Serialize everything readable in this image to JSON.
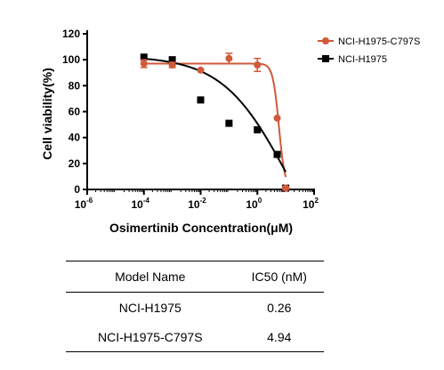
{
  "chart_data": {
    "type": "scatter",
    "xlabel": "Osimertinib Concentration(μM)",
    "ylabel": "Cell viability(%)",
    "xscale": "log",
    "xlim": [
      -6,
      2
    ],
    "ylim": [
      0,
      120
    ],
    "x_ticks": [
      {
        "base": "10",
        "exp": "-6",
        "value": -6
      },
      {
        "base": "10",
        "exp": "-4",
        "value": -4
      },
      {
        "base": "10",
        "exp": "-2",
        "value": -2
      },
      {
        "base": "10",
        "exp": "0",
        "value": 0
      },
      {
        "base": "10",
        "exp": "2",
        "value": 2
      }
    ],
    "y_ticks": [
      "0",
      "20",
      "40",
      "60",
      "80",
      "100",
      "120"
    ],
    "legend_position": "top-right",
    "series": [
      {
        "name": "NCI-H1975-C797S",
        "color": "#d05a3a",
        "marker": "circle",
        "x": [
          0.0001,
          0.001,
          0.01,
          0.1,
          1,
          5,
          10
        ],
        "y": [
          97,
          96,
          92,
          101,
          96,
          55,
          1
        ],
        "err": [
          3,
          2,
          0,
          4,
          5,
          0,
          1
        ],
        "ic50": 4.94
      },
      {
        "name": "NCI-H1975",
        "color": "#000000",
        "marker": "square",
        "x": [
          0.0001,
          0.001,
          0.01,
          0.1,
          1,
          5,
          10
        ],
        "y": [
          102,
          100,
          69,
          51,
          46,
          27,
          1
        ],
        "err": [
          0,
          0,
          0,
          0,
          0,
          0,
          0
        ],
        "ic50": 0.26
      }
    ]
  },
  "table": {
    "headers": [
      "Model Name",
      "IC50 (nM)"
    ],
    "rows": [
      [
        "NCI-H1975",
        "0.26"
      ],
      [
        "NCI-H1975-C797S",
        "4.94"
      ]
    ]
  }
}
